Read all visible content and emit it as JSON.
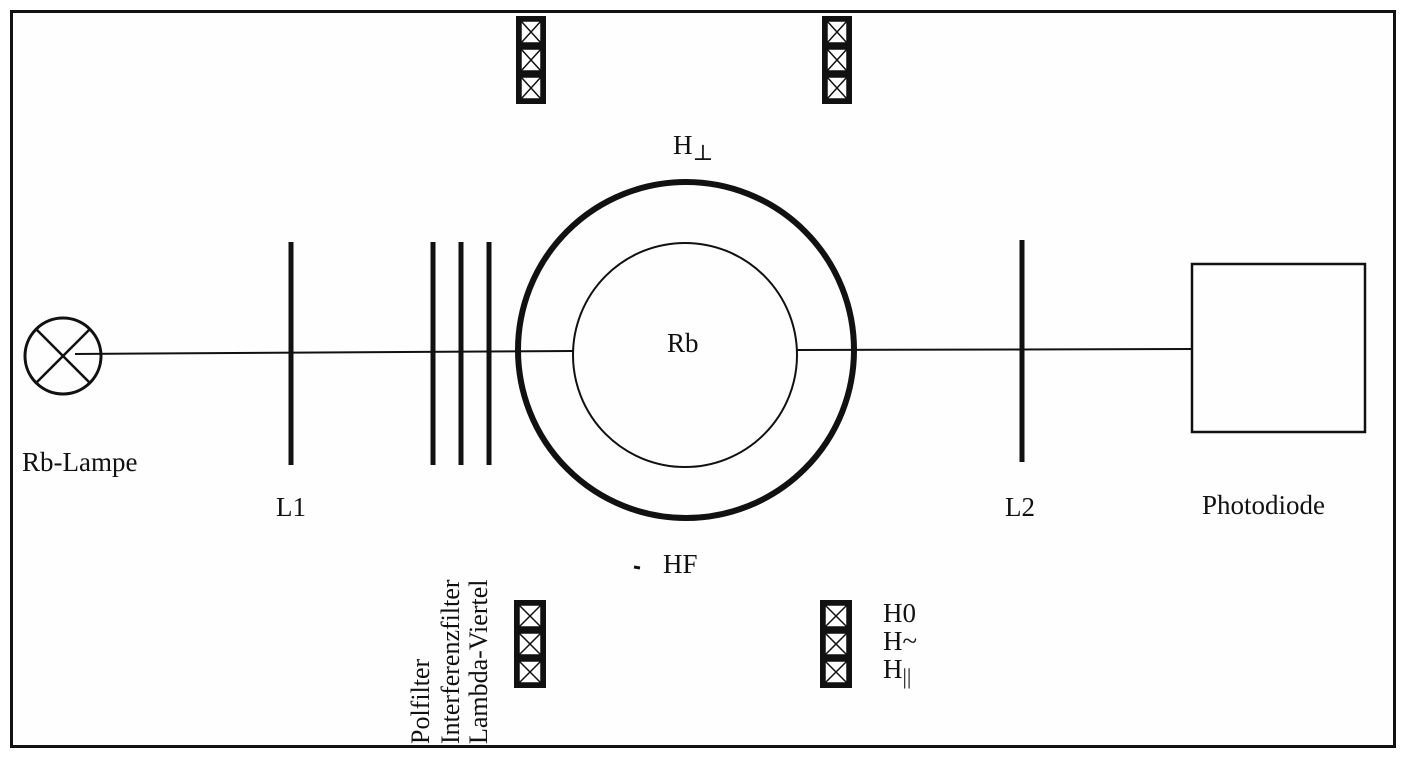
{
  "labels": {
    "lamp": "Rb-Lampe",
    "lens1": "L1",
    "lens2": "L2",
    "cell": "Rb",
    "detector": "Photodiode",
    "rf": "HF",
    "h_perp_base": "H",
    "h_perp_sub": "⊥",
    "coil_h0": "H0",
    "coil_h_alt": "H~",
    "coil_h_par_base": "H",
    "coil_h_par_sub": "||"
  },
  "filters": {
    "polfilter": "Polfilter",
    "interferenzfilter": "Interferenzfilter",
    "lambda_viertel": "Lambda-Viertel"
  },
  "icons": {
    "lamp_symbol": "lamp-cross-icon",
    "coil_symbol": "coil-cross-icon"
  },
  "colors": {
    "ink": "#111111",
    "background": "#ffffff"
  }
}
